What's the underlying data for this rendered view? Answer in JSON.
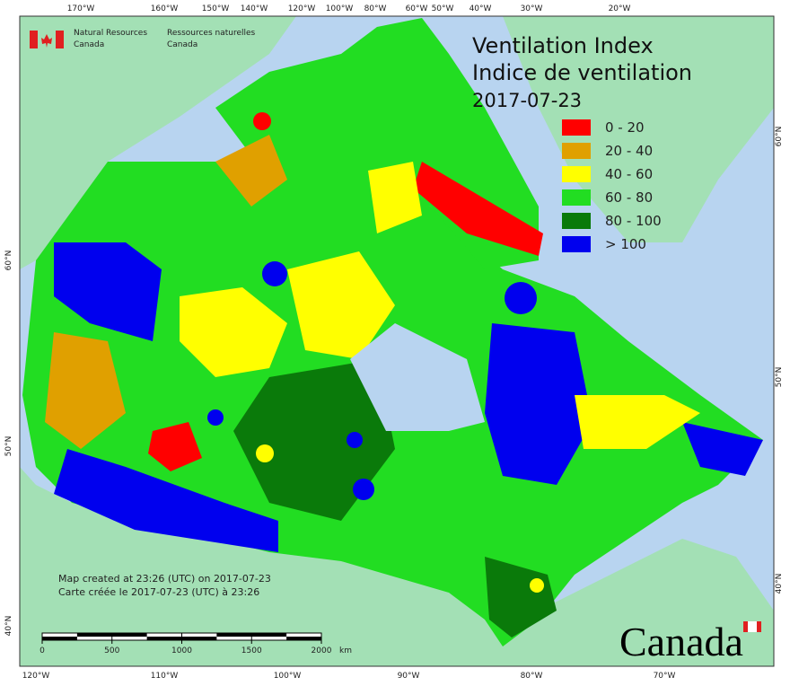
{
  "header": {
    "agency_en": "Natural Resources",
    "agency_en2": "Canada",
    "agency_fr": "Ressources naturelles",
    "agency_fr2": "Canada"
  },
  "title": {
    "en": "Ventilation Index",
    "fr": "Indice de ventilation",
    "date": "2017-07-23"
  },
  "legend": [
    {
      "label": "0 - 20",
      "color": "#ff0000"
    },
    {
      "label": "20 - 40",
      "color": "#e0a000"
    },
    {
      "label": "40 - 60",
      "color": "#ffff00"
    },
    {
      "label": "60 - 80",
      "color": "#22dd22"
    },
    {
      "label": "80 - 100",
      "color": "#0a7a0a"
    },
    {
      "label": "> 100",
      "color": "#0000ee"
    }
  ],
  "graticule": {
    "top": [
      "170°W",
      "160°W",
      "150°W",
      "140°W",
      "120°W",
      "100°W",
      "80°W",
      "60°W",
      "50°W",
      "40°W",
      "30°W",
      "20°W"
    ],
    "bottom": [
      "120°W",
      "110°W",
      "100°W",
      "90°W",
      "80°W",
      "70°W"
    ],
    "left": [
      "60°N",
      "50°N",
      "40°N"
    ],
    "right": [
      "60°N",
      "50°N",
      "40°N"
    ]
  },
  "footer": {
    "created_en": "Map created at 23:26 (UTC) on 2017-07-23",
    "created_fr": "Carte créée le 2017-07-23 (UTC) à 23:26"
  },
  "scale_bar": {
    "ticks": [
      0,
      500,
      1000,
      1500,
      2000
    ],
    "unit": "km"
  },
  "wordmark": "Canada"
}
